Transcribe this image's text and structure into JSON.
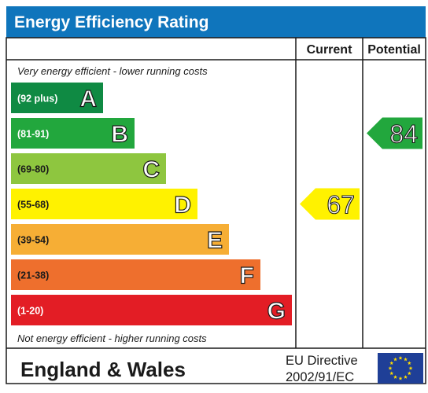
{
  "chart_data": {
    "type": "bar",
    "title": "Energy Efficiency Rating",
    "columns": {
      "current": "Current",
      "potential": "Potential"
    },
    "top_note": "Very energy efficient - lower running costs",
    "bottom_note": "Not energy efficient - higher running costs",
    "bands": [
      {
        "letter": "A",
        "range": "(92 plus)",
        "color": "#0f8a43"
      },
      {
        "letter": "B",
        "range": "(81-91)",
        "color": "#22a73d"
      },
      {
        "letter": "C",
        "range": "(69-80)",
        "color": "#8ec63f"
      },
      {
        "letter": "D",
        "range": "(55-68)",
        "color": "#fff200"
      },
      {
        "letter": "E",
        "range": "(39-54)",
        "color": "#f6ae35"
      },
      {
        "letter": "F",
        "range": "(21-38)",
        "color": "#ee6f2d"
      },
      {
        "letter": "G",
        "range": "(1-20)",
        "color": "#e31d25"
      }
    ],
    "current": {
      "value": 67,
      "band": "D",
      "color": "#fff200"
    },
    "potential": {
      "value": 84,
      "band": "B",
      "color": "#22a73d"
    },
    "footer": {
      "region": "England & Wales",
      "directive_line1": "EU Directive",
      "directive_line2": "2002/91/EC"
    }
  },
  "colors": {
    "header_bg": "#0f75bc",
    "header_text": "#ffffff",
    "border": "#1a1a1a",
    "eu_flag_bg": "#1f3f97",
    "eu_stars": "#ffdd00"
  },
  "icons": {
    "flag": "eu-flag-icon"
  }
}
